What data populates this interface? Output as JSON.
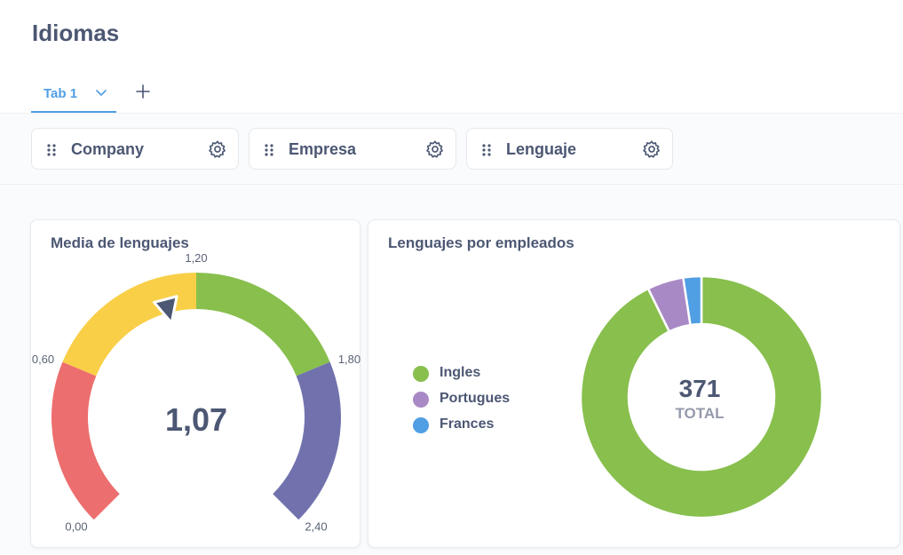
{
  "page": {
    "title": "Idiomas"
  },
  "tabs": [
    {
      "label": "Tab 1"
    }
  ],
  "filters": [
    {
      "label": "Company"
    },
    {
      "label": "Empresa"
    },
    {
      "label": "Lenguaje"
    }
  ],
  "cards": {
    "gauge": {
      "title": "Media de lenguajes",
      "value_label": "1,07"
    },
    "donut": {
      "title": "Lenguajes por empleados",
      "total_value": "371",
      "total_label": "TOTAL"
    }
  },
  "colors": {
    "accent": "#509ee3",
    "gauge_red": "#ed6e6e",
    "gauge_yellow": "#f9cf48",
    "gauge_green": "#88bf4d",
    "gauge_purple": "#7172ad",
    "ingles": "#88bf4d",
    "portugues": "#a989c5",
    "frances": "#509ee3"
  },
  "icons": {
    "tab_chevron": "chevron-down-icon",
    "add_tab": "plus-icon",
    "filter_grip": "grabber-icon",
    "filter_settings": "gear-icon"
  },
  "chart_data": [
    {
      "type": "gauge",
      "title": "Media de lenguajes",
      "value": 1.07,
      "value_label": "1,07",
      "range": [
        0,
        2.4
      ],
      "segments": [
        {
          "min": 0,
          "max": 0.6,
          "color": "#ed6e6e"
        },
        {
          "min": 0.6,
          "max": 1.2,
          "color": "#f9cf48"
        },
        {
          "min": 1.2,
          "max": 1.8,
          "color": "#88bf4d"
        },
        {
          "min": 1.8,
          "max": 2.4,
          "color": "#7172ad"
        }
      ],
      "ticks": [
        {
          "value": 0,
          "label": "0,00"
        },
        {
          "value": 0.6,
          "label": "0,60"
        },
        {
          "value": 1.2,
          "label": "1,20"
        },
        {
          "value": 1.8,
          "label": "1,80"
        },
        {
          "value": 2.4,
          "label": "2,40"
        }
      ]
    },
    {
      "type": "pie",
      "title": "Lenguajes por empleados",
      "total": 371,
      "total_label": "TOTAL",
      "legend_position": "left",
      "slices": [
        {
          "name": "Ingles",
          "value": 344,
          "color": "#88bf4d"
        },
        {
          "name": "Portugues",
          "value": 18,
          "color": "#a989c5"
        },
        {
          "name": "Frances",
          "value": 9,
          "color": "#509ee3"
        }
      ]
    }
  ]
}
